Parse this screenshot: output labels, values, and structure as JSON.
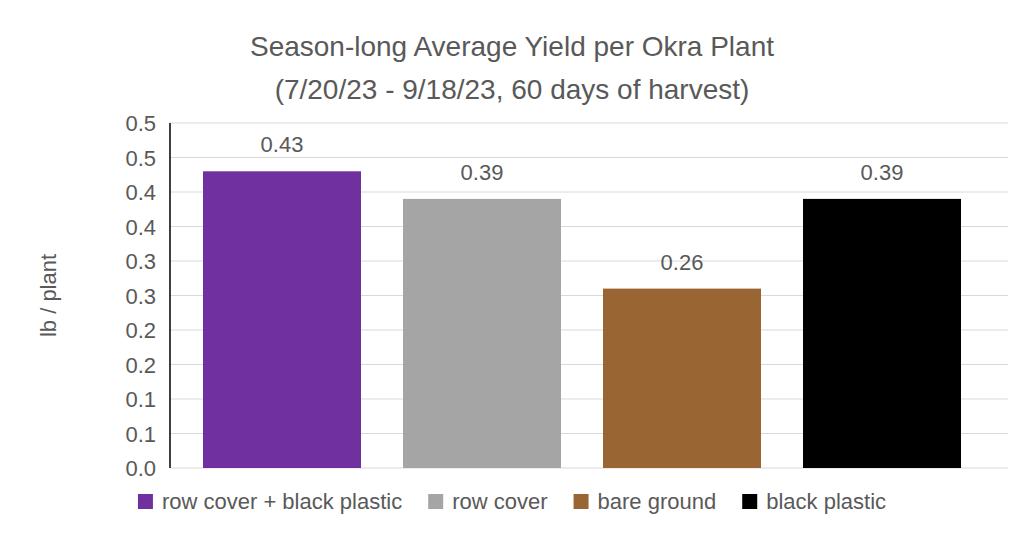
{
  "chart_data": {
    "type": "bar",
    "title": "Season-long Average Yield per Okra Plant",
    "subtitle": "(7/20/23 - 9/18/23, 60 days of harvest)",
    "y_label": "lb / plant",
    "categories": [
      "row cover + black plastic",
      "row cover",
      "bare ground",
      "black plastic"
    ],
    "values": [
      0.43,
      0.39,
      0.26,
      0.39
    ],
    "colors": [
      "#7030a0",
      "#a5a5a5",
      "#996633",
      "#000000"
    ],
    "ylim": [
      0,
      0.5
    ],
    "yticks": [
      {
        "value": 0,
        "label": "0.0"
      },
      {
        "value": 0.05,
        "label": "0.1"
      },
      0.1,
      {
        "value": 0.15,
        "label": "0.2"
      },
      0.2,
      {
        "value": 0.25,
        "label": "0.3"
      },
      0.3,
      {
        "value": 0.35,
        "label": "0.4"
      },
      0.4,
      {
        "value": 0.45,
        "label": "0.5"
      },
      0.5
    ],
    "grid": true,
    "data_labels": true,
    "legend": "bottom",
    "tick_labels": "y"
  }
}
